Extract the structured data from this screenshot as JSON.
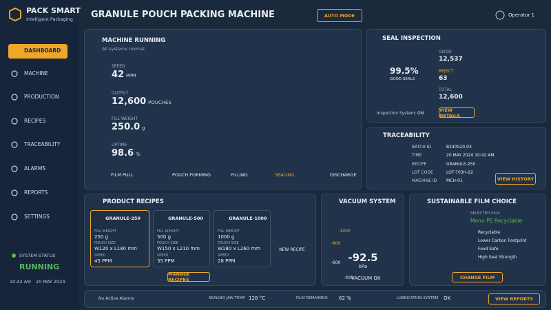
{
  "brand": {
    "name": "PACK SMART",
    "tagline": "Intelligent Packaging"
  },
  "nav": [
    "DASHBOARD",
    "MACHINE",
    "PRODUCTION",
    "RECIPES",
    "TRACEABILITY",
    "ALARMS",
    "REPORTS",
    "SETTINGS"
  ],
  "system_status": {
    "label": "SYSTEM STATUS",
    "state": "RUNNING",
    "time": "10:42 AM",
    "date": "20 MAY 2024"
  },
  "header": {
    "title": "GRANULE POUCH PACKING MACHINE",
    "mode_button": "AUTO MODE",
    "user": "Operator 1"
  },
  "machine": {
    "status": "MACHINE RUNNING",
    "substatus": "All systems normal",
    "metrics": [
      {
        "label": "SPEED",
        "value": "42",
        "unit": "PPM"
      },
      {
        "label": "OUTPUT",
        "value": "12,600",
        "unit": "POUCHES"
      },
      {
        "label": "FILL WEIGHT",
        "value": "250.0",
        "unit": "g"
      },
      {
        "label": "UPTIME",
        "value": "98.6",
        "unit": "%"
      }
    ],
    "steps": [
      "FILM PULL",
      "POUCH FORMING",
      "FILLING",
      "SEALING",
      "DISCHARGE"
    ]
  },
  "seal": {
    "title": "SEAL INSPECTION",
    "good_pct": "99.5%",
    "good_pct_label": "GOOD SEALS",
    "good_label": "GOOD",
    "good": "12,537",
    "reject_label": "REJECT",
    "reject": "63",
    "total_label": "TOTAL",
    "total": "12,600",
    "system_label": "Inspection System:",
    "system_state": "ON",
    "button": "VIEW DETAILS"
  },
  "traceability": {
    "title": "TRACEABILITY",
    "fields": [
      [
        "BATCH ID",
        "B240520-03"
      ],
      [
        "TIME",
        "20 MAY 2024 10:42 AM"
      ],
      [
        "RECIPE",
        "GRANULE-250"
      ],
      [
        "LOT CODE",
        "LOT-703H-22"
      ],
      [
        "MACHINE ID",
        "MCH-01"
      ]
    ],
    "button": "VIEW HISTORY"
  },
  "recipes": {
    "title": "PRODUCT RECIPES",
    "items": [
      {
        "name": "GRANULE-250",
        "fill_label": "FILL WEIGHT",
        "fill": "250 g",
        "size_label": "POUCH SIZE",
        "size": "W120 x L180 mm",
        "speed_label": "SPEED",
        "speed": "45 PPM"
      },
      {
        "name": "GRANULE-500",
        "fill_label": "FILL WEIGHT",
        "fill": "500 g",
        "size_label": "POUCH SIZE",
        "size": "W150 x L210 mm",
        "speed_label": "SPEED",
        "speed": "35 PPM"
      },
      {
        "name": "GRANULE-1000",
        "fill_label": "FILL WEIGHT",
        "fill": "1000 g",
        "size_label": "POUCH SIZE",
        "size": "W180 x L260 mm",
        "speed_label": "SPEED",
        "speed": "28 PPM"
      }
    ],
    "new_label": "NEW RECIPE",
    "button": "MANAGE RECIPES"
  },
  "vacuum": {
    "title": "VACUUM SYSTEM",
    "scale": [
      "-400",
      "-600",
      "-800",
      "-1000"
    ],
    "value": "-92.5",
    "unit": "kPa",
    "status": "VACUUM OK"
  },
  "film": {
    "title": "SUSTAINABLE FILM CHOICE",
    "selected_label": "SELECTED FILM",
    "film": "Mono-PE Recyclable",
    "features": [
      "Recyclable",
      "Lower Carbon Footprint",
      "Food Safe",
      "High Seal Strength"
    ],
    "button": "CHANGE FILM"
  },
  "footer": {
    "alarms": "No Active Alarms",
    "jaw_label": "SEALING JAW TEMP",
    "jaw": "128 °C",
    "film_label": "FILM REMAINING",
    "film": "62 %",
    "lube_label": "LUBRICATION SYSTEM",
    "lube": "OK",
    "button": "VIEW REPORTS"
  }
}
